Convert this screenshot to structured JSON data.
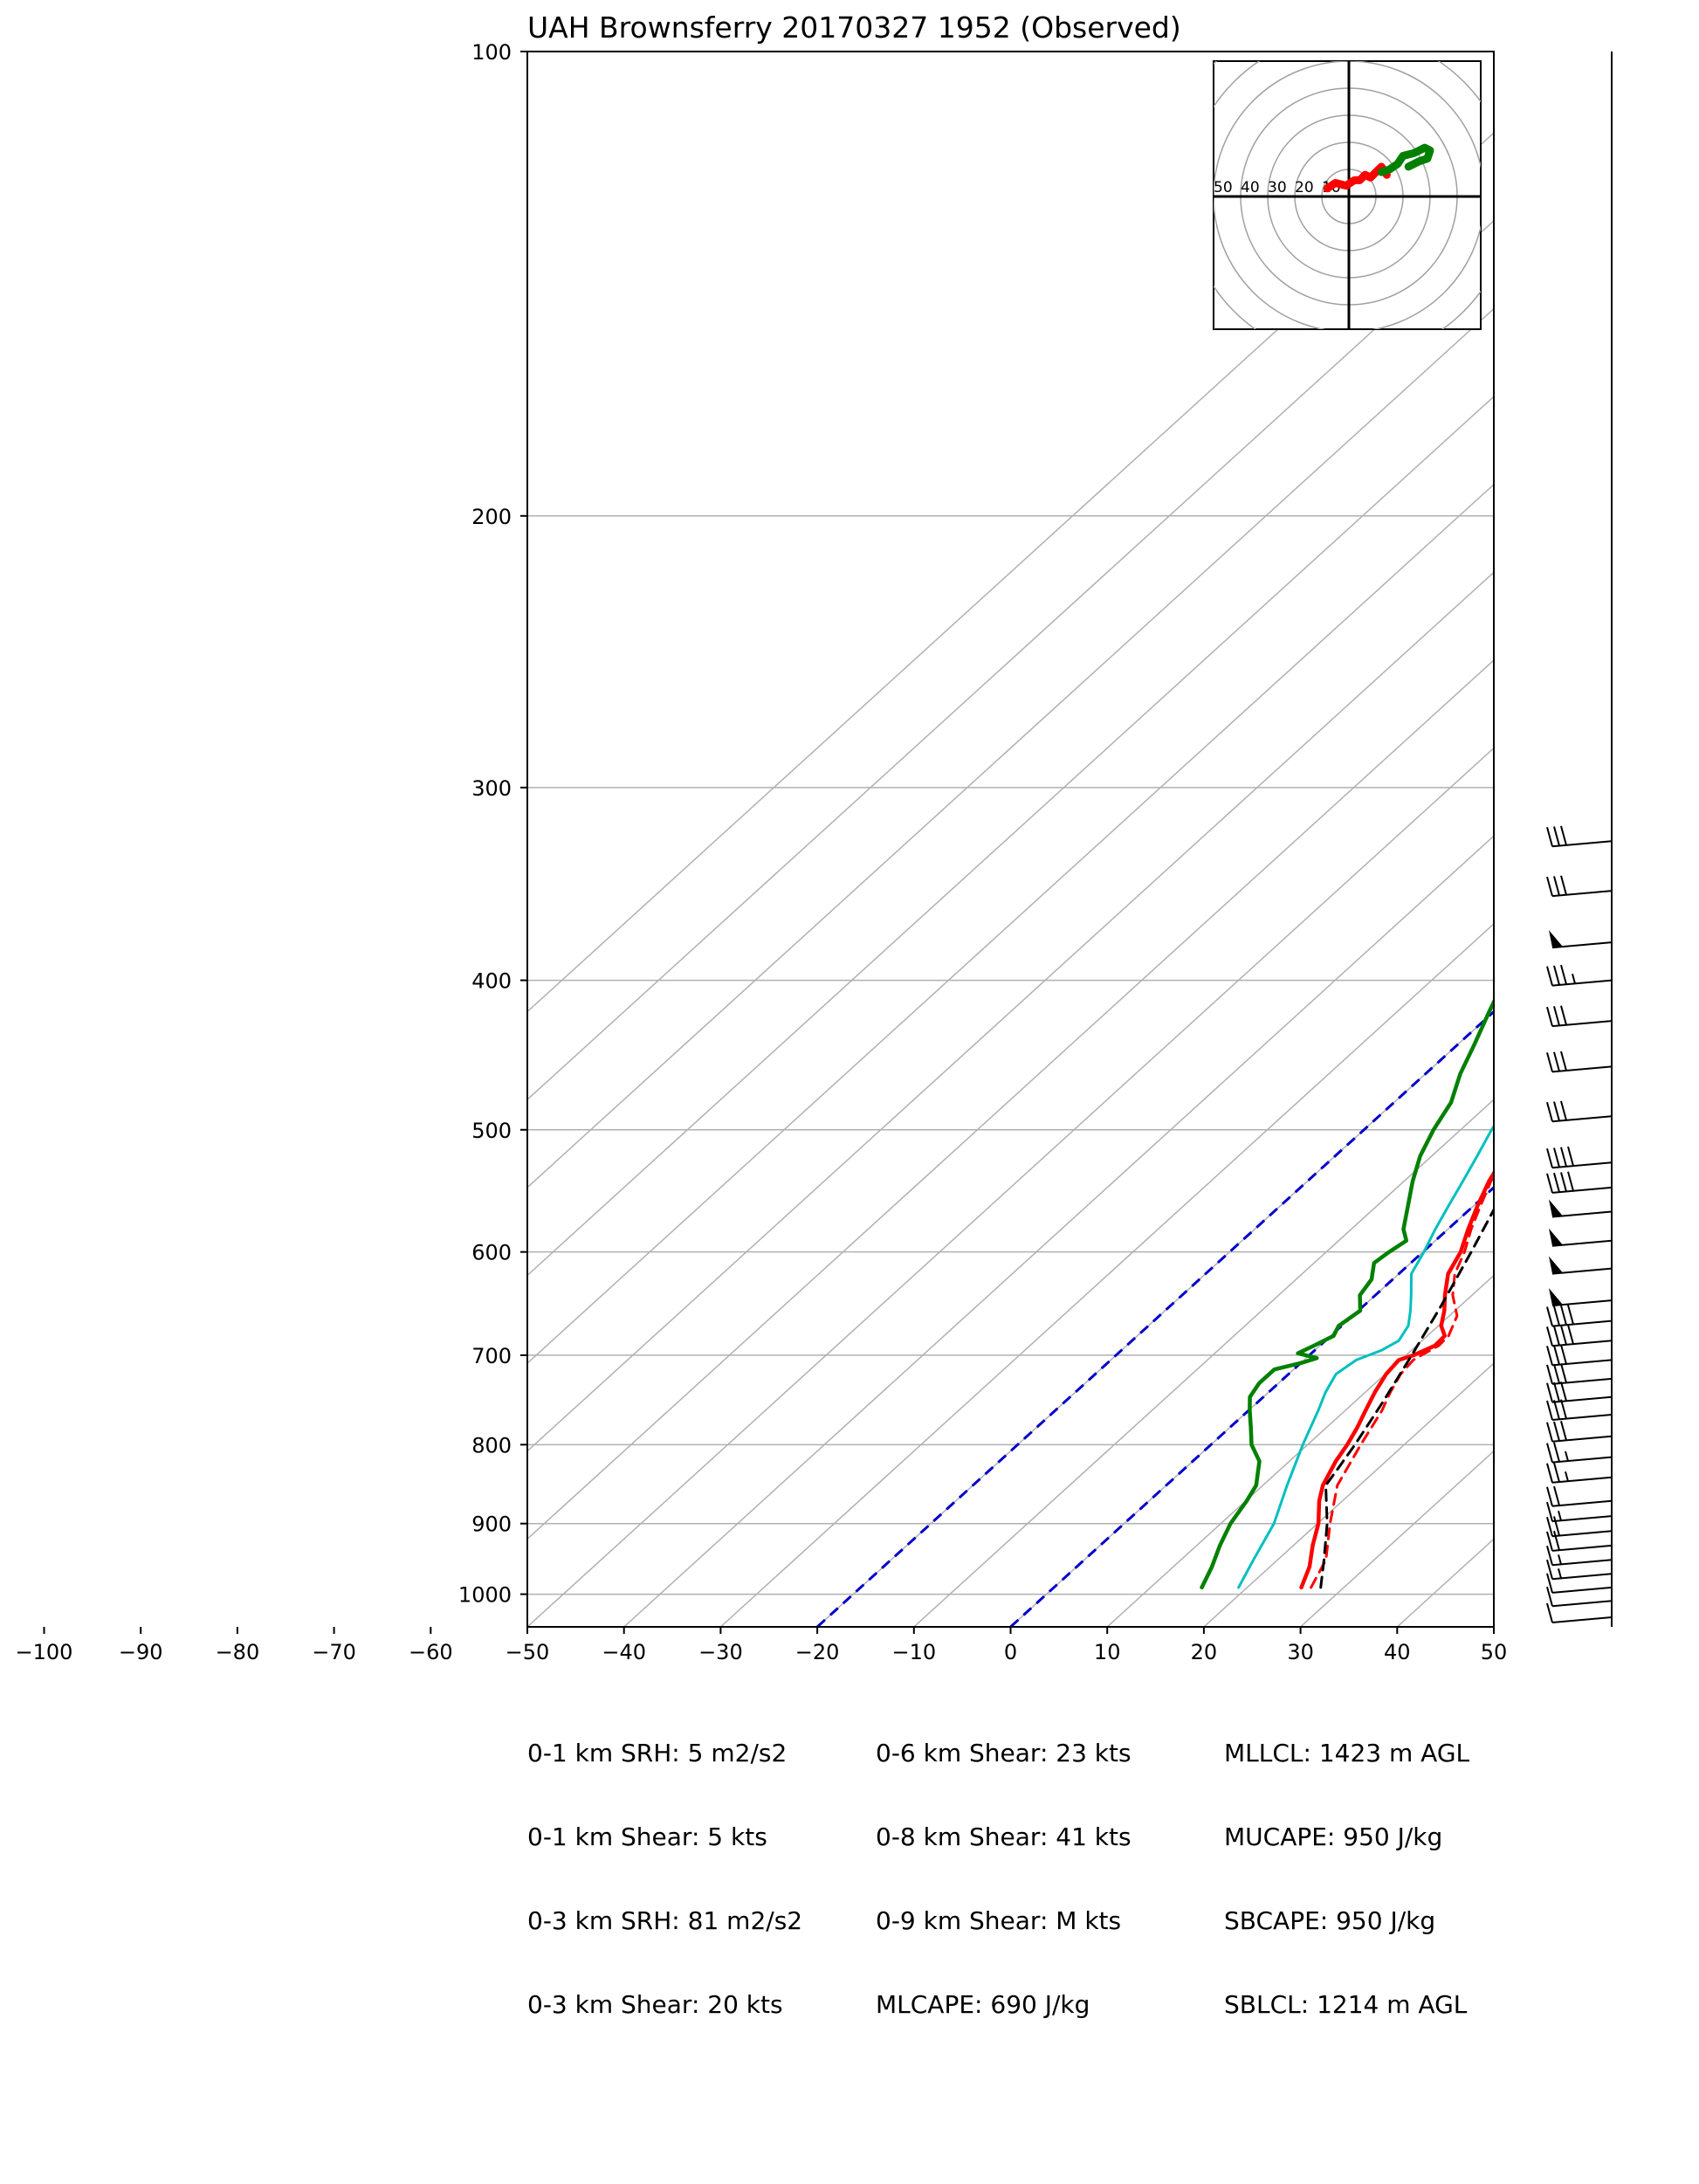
{
  "chart_data": {
    "type": "line",
    "title": "UAH Brownsferry 20170327 1952   (Observed)",
    "xlabel": "",
    "ylabel": "",
    "xlim": [
      -50,
      50
    ],
    "pressure_range_hPa": [
      1050,
      100
    ],
    "y_scale": "log",
    "skew": true,
    "grid": true,
    "x_ticks": [
      -100,
      -90,
      -80,
      -70,
      -60,
      -50,
      -40,
      -30,
      -20,
      -10,
      0,
      10,
      20,
      30,
      40,
      50
    ],
    "y_ticks": [
      100,
      200,
      300,
      400,
      500,
      600,
      700,
      800,
      900,
      1000
    ],
    "isotherm_lines": [
      -120,
      -110,
      -100,
      -90,
      -80,
      -70,
      -60,
      -50,
      -40,
      -30,
      -20,
      -10,
      0,
      10,
      20,
      30,
      40,
      50
    ],
    "highlighted_isotherms": [
      -20,
      0
    ],
    "series": [
      {
        "color": "#ff0000",
        "style": "solid",
        "width": 4.5,
        "points": [
          [
            990,
            25.6
          ],
          [
            960,
            24.1
          ],
          [
            930,
            22.0
          ],
          [
            900,
            20.1
          ],
          [
            870,
            17.6
          ],
          [
            850,
            16.2
          ],
          [
            820,
            14.8
          ],
          [
            800,
            14.1
          ],
          [
            780,
            13.2
          ],
          [
            760,
            12.1
          ],
          [
            740,
            11.0
          ],
          [
            720,
            10.1
          ],
          [
            705,
            9.8
          ],
          [
            700,
            10.8
          ],
          [
            690,
            11.9
          ],
          [
            680,
            11.8
          ],
          [
            670,
            10.3
          ],
          [
            655,
            8.9
          ],
          [
            640,
            7.2
          ],
          [
            620,
            5.1
          ],
          [
            600,
            3.9
          ],
          [
            580,
            2.1
          ],
          [
            560,
            0.4
          ],
          [
            540,
            -1.2
          ],
          [
            520,
            -2.5
          ],
          [
            500,
            -4.2
          ],
          [
            480,
            -5.3
          ],
          [
            460,
            -7.0
          ],
          [
            440,
            -9.1
          ],
          [
            420,
            -11.4
          ],
          [
            400,
            -13.5
          ],
          [
            380,
            -16.2
          ],
          [
            360,
            -19.0
          ],
          [
            340,
            -22.3
          ],
          [
            320,
            -26.0
          ]
        ]
      },
      {
        "color": "#ff0000",
        "style": "dashed",
        "width": 3,
        "points": [
          [
            990,
            26.6
          ],
          [
            950,
            25.0
          ],
          [
            900,
            21.3
          ],
          [
            850,
            17.7
          ],
          [
            800,
            15.5
          ],
          [
            760,
            13.8
          ],
          [
            740,
            12.6
          ],
          [
            720,
            11.6
          ],
          [
            705,
            11.3
          ],
          [
            700,
            11.6
          ],
          [
            690,
            12.3
          ],
          [
            680,
            12.2
          ],
          [
            660,
            10.8
          ],
          [
            640,
            8.0
          ],
          [
            620,
            5.8
          ],
          [
            600,
            4.3
          ],
          [
            580,
            2.4
          ],
          [
            560,
            0.7
          ],
          [
            540,
            -1.0
          ],
          [
            520,
            -2.3
          ],
          [
            500,
            -4.0
          ],
          [
            460,
            -6.8
          ],
          [
            420,
            -11.2
          ],
          [
            380,
            -16.0
          ],
          [
            340,
            -22.1
          ],
          [
            320,
            -25.8
          ]
        ]
      },
      {
        "color": "#00bfbf",
        "style": "solid",
        "width": 3,
        "points": [
          [
            990,
            19.1
          ],
          [
            950,
            17.5
          ],
          [
            900,
            15.5
          ],
          [
            850,
            12.5
          ],
          [
            800,
            9.5
          ],
          [
            760,
            7.2
          ],
          [
            740,
            5.9
          ],
          [
            720,
            4.9
          ],
          [
            705,
            5.4
          ],
          [
            695,
            6.9
          ],
          [
            685,
            7.6
          ],
          [
            670,
            6.9
          ],
          [
            655,
            5.4
          ],
          [
            640,
            3.7
          ],
          [
            620,
            1.3
          ],
          [
            600,
            0.1
          ],
          [
            580,
            -1.3
          ],
          [
            560,
            -2.6
          ],
          [
            540,
            -3.9
          ],
          [
            520,
            -5.3
          ],
          [
            500,
            -6.8
          ],
          [
            480,
            -8.1
          ],
          [
            460,
            -9.8
          ],
          [
            440,
            -12.3
          ],
          [
            420,
            -14.0
          ],
          [
            400,
            -16.3
          ],
          [
            380,
            -18.5
          ],
          [
            360,
            -21.0
          ],
          [
            340,
            -23.6
          ],
          [
            320,
            -26.4
          ]
        ]
      },
      {
        "color": "#008000",
        "style": "solid",
        "width": 4.5,
        "points": [
          [
            990,
            15.3
          ],
          [
            960,
            14.0
          ],
          [
            930,
            12.4
          ],
          [
            900,
            11.0
          ],
          [
            870,
            10.1
          ],
          [
            850,
            9.3
          ],
          [
            820,
            6.9
          ],
          [
            800,
            4.2
          ],
          [
            780,
            2.2
          ],
          [
            760,
            0.1
          ],
          [
            745,
            -1.4
          ],
          [
            730,
            -2.0
          ],
          [
            715,
            -2.0
          ],
          [
            708,
            0.1
          ],
          [
            703,
            1.1
          ],
          [
            698,
            -1.4
          ],
          [
            690,
            -0.6
          ],
          [
            680,
            0.3
          ],
          [
            670,
            -0.3
          ],
          [
            655,
            0.2
          ],
          [
            640,
            -1.6
          ],
          [
            625,
            -2.2
          ],
          [
            610,
            -3.8
          ],
          [
            600,
            -3.5
          ],
          [
            590,
            -3.0
          ],
          [
            580,
            -4.6
          ],
          [
            560,
            -6.8
          ],
          [
            540,
            -9.1
          ],
          [
            520,
            -11.2
          ],
          [
            500,
            -12.8
          ],
          [
            480,
            -14.1
          ],
          [
            460,
            -16.4
          ],
          [
            440,
            -18.3
          ],
          [
            420,
            -20.4
          ],
          [
            400,
            -22.5
          ],
          [
            380,
            -24.2
          ],
          [
            360,
            -26.2
          ],
          [
            340,
            -28.4
          ],
          [
            320,
            -30.7
          ]
        ]
      },
      {
        "color": "#000000",
        "style": "dashed",
        "width": 3,
        "points": [
          [
            990,
            27.6
          ],
          [
            950,
            24.8
          ],
          [
            900,
            21.0
          ],
          [
            850,
            16.5
          ],
          [
            830,
            15.9
          ],
          [
            800,
            14.9
          ],
          [
            750,
            12.9
          ],
          [
            700,
            10.6
          ],
          [
            650,
            8.0
          ],
          [
            600,
            5.0
          ],
          [
            550,
            1.6
          ],
          [
            500,
            -2.4
          ],
          [
            450,
            -7.2
          ],
          [
            400,
            -12.9
          ],
          [
            360,
            -18.4
          ],
          [
            340,
            -21.8
          ],
          [
            320,
            -25.4
          ]
        ]
      }
    ],
    "hodograph": {
      "ring_labels": [
        "50",
        "40",
        "30",
        "20",
        "10"
      ],
      "series": [
        {
          "color": "#ff0000",
          "points": [
            [
              -8,
              3
            ],
            [
              -5,
              5
            ],
            [
              -1,
              4
            ],
            [
              2,
              6
            ],
            [
              4,
              6
            ],
            [
              6,
              8
            ],
            [
              8,
              7
            ],
            [
              10,
              9
            ],
            [
              12,
              11
            ],
            [
              14,
              8
            ]
          ]
        },
        {
          "color": "#008000",
          "points": [
            [
              12,
              9
            ],
            [
              15,
              10
            ],
            [
              18,
              12
            ],
            [
              20,
              15
            ],
            [
              24,
              16
            ],
            [
              26,
              17
            ],
            [
              28,
              18
            ],
            [
              30,
              17
            ],
            [
              29,
              14
            ],
            [
              26,
              13
            ],
            [
              22,
              11
            ]
          ]
        }
      ]
    },
    "wind_barbs": [
      {
        "p": 325,
        "speed": 30
      },
      {
        "p": 350,
        "speed": 30
      },
      {
        "p": 378,
        "speed": 50
      },
      {
        "p": 400,
        "speed": 35
      },
      {
        "p": 425,
        "speed": 30
      },
      {
        "p": 455,
        "speed": 30
      },
      {
        "p": 490,
        "speed": 30
      },
      {
        "p": 525,
        "speed": 40
      },
      {
        "p": 545,
        "speed": 40
      },
      {
        "p": 565,
        "speed": 50
      },
      {
        "p": 590,
        "speed": 50
      },
      {
        "p": 615,
        "speed": 50
      },
      {
        "p": 645,
        "speed": 50
      },
      {
        "p": 665,
        "speed": 40
      },
      {
        "p": 685,
        "speed": 40
      },
      {
        "p": 705,
        "speed": 30
      },
      {
        "p": 725,
        "speed": 30
      },
      {
        "p": 745,
        "speed": 30
      },
      {
        "p": 765,
        "speed": 30
      },
      {
        "p": 790,
        "speed": 30
      },
      {
        "p": 815,
        "speed": 25
      },
      {
        "p": 840,
        "speed": 25
      },
      {
        "p": 870,
        "speed": 20
      },
      {
        "p": 890,
        "speed": 15
      },
      {
        "p": 910,
        "speed": 20
      },
      {
        "p": 930,
        "speed": 20
      },
      {
        "p": 950,
        "speed": 15
      },
      {
        "p": 970,
        "speed": 15
      },
      {
        "p": 990,
        "speed": 10
      },
      {
        "p": 1010,
        "speed": 10
      },
      {
        "p": 1035,
        "speed": 10
      }
    ]
  },
  "params": {
    "col1": [
      "0-1 km SRH: 5 m2/s2",
      "0-1 km Shear: 5 kts",
      "0-3 km SRH: 81 m2/s2",
      "0-3 km Shear: 20 kts"
    ],
    "col2": [
      "0-6 km Shear: 23 kts",
      "0-8 km Shear: 41 kts",
      "0-9 km Shear: M kts",
      "MLCAPE: 690 J/kg"
    ],
    "col3": [
      "MLLCL: 1423 m AGL",
      "MUCAPE: 950 J/kg",
      "SBCAPE: 950 J/kg",
      "SBLCL: 1214 m AGL"
    ]
  }
}
